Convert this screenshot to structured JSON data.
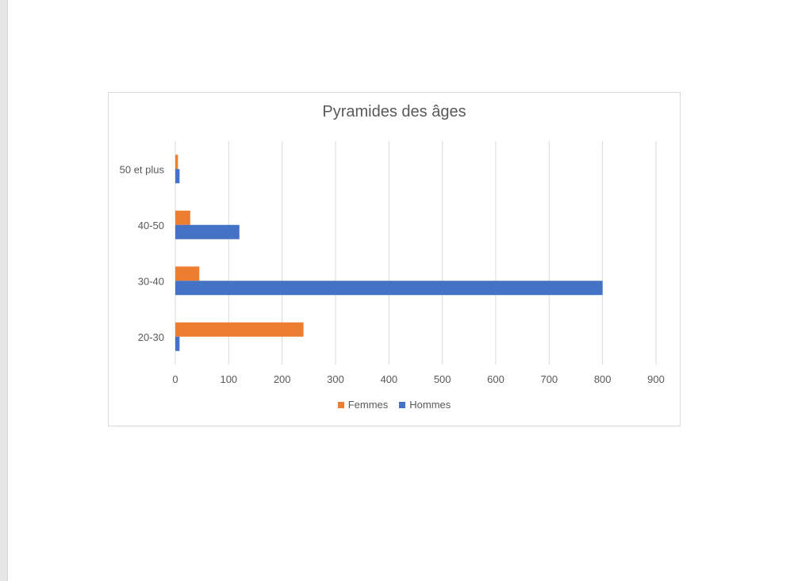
{
  "chart_data": {
    "type": "bar",
    "orientation": "horizontal",
    "title": "Pyramides des âges",
    "categories": [
      "20-30",
      "30-40",
      "40-50",
      "50 et plus"
    ],
    "series": [
      {
        "name": "Femmes",
        "color": "#ED7D31",
        "values": [
          240,
          45,
          28,
          5
        ]
      },
      {
        "name": "Hommes",
        "color": "#4472C4",
        "values": [
          8,
          800,
          120,
          8
        ]
      }
    ],
    "xlim": [
      0,
      900
    ],
    "xticks": [
      "0",
      "100",
      "200",
      "300",
      "400",
      "500",
      "600",
      "700",
      "800",
      "900"
    ],
    "grid": true,
    "legend_position": "bottom"
  }
}
